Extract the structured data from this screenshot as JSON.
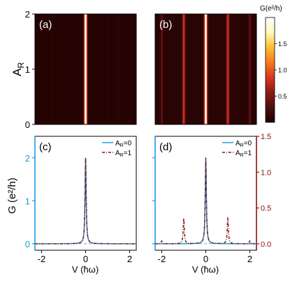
{
  "figure": {
    "colorbar": {
      "title": "G(e²/h)",
      "ticks": [
        "1.5",
        "1.0",
        "0.5"
      ],
      "tick_values": [
        1.5,
        1.0,
        0.5
      ],
      "range": [
        0,
        2.0
      ],
      "colors": [
        "#1b0000",
        "#4a0f0f",
        "#8c1a1a",
        "#d9361e",
        "#f47b1e",
        "#fbbf2c",
        "#fff8c0",
        "#ffffff"
      ]
    },
    "colors": {
      "left_axis": "#1a9fe0",
      "right_axis": "#8a1010",
      "curve_ar0": "#1a9fe0",
      "curve_ar1": "#8a1010"
    }
  },
  "chart_data": [
    {
      "panel": "(a)",
      "type": "heatmap",
      "ylabel_main": "A",
      "ylabel_sub": "R",
      "xlim": [
        -2.3,
        2.3
      ],
      "ylim": [
        0,
        2
      ],
      "ytick_labels": [
        "0",
        "1",
        "2"
      ],
      "ytick_values": [
        0,
        1,
        2
      ],
      "peaks_x": [
        0
      ],
      "peak_intensity": [
        1.9
      ],
      "background_intensity": 0.06
    },
    {
      "panel": "(b)",
      "type": "heatmap",
      "xlim": [
        -2.3,
        2.3
      ],
      "ylim": [
        0,
        2
      ],
      "peaks_x": [
        0,
        -1,
        1,
        -2,
        2
      ],
      "peak_intensity": [
        1.9,
        0.8,
        0.8,
        0.35,
        0.35
      ],
      "background_intensity": 0.08
    },
    {
      "panel": "(c)",
      "type": "line",
      "ylabel": "G (e²/h)",
      "xlim": [
        -2.3,
        2.3
      ],
      "ylim": [
        -0.15,
        2.5
      ],
      "ytick_labels": [
        "0",
        "1",
        "2"
      ],
      "ytick_values": [
        0,
        1,
        2
      ],
      "xtick_labels": [
        "-2",
        "0",
        "2"
      ],
      "xtick_values": [
        -2,
        0,
        2
      ],
      "xlabel": "V (ħω)",
      "series": [
        {
          "name_main": "A",
          "name_sub": "R",
          "name_suffix": "=0",
          "style": "solid",
          "peaks_x": [
            0
          ],
          "peaks_y": [
            2.0
          ],
          "width": 0.03
        },
        {
          "name_main": "A",
          "name_sub": "R",
          "name_suffix": "=1",
          "style": "dash",
          "peaks_x": [
            0
          ],
          "peaks_y": [
            2.0
          ],
          "width": 0.03
        }
      ]
    },
    {
      "panel": "(d)",
      "type": "line",
      "xlim": [
        -2.3,
        2.3
      ],
      "ylim": [
        -0.15,
        2.5
      ],
      "ylim_right": [
        -0.09,
        1.5
      ],
      "xtick_labels": [
        "-2",
        "0",
        "2"
      ],
      "xtick_values": [
        -2,
        0,
        2
      ],
      "ytick_right_labels": [
        "0.0",
        "0.5",
        "1.0",
        "1.5"
      ],
      "ytick_right_values": [
        0,
        0.5,
        1.0,
        1.5
      ],
      "xlabel": "V (ħω)",
      "series": [
        {
          "name_main": "A",
          "name_sub": "R",
          "name_suffix": "=0",
          "style": "solid",
          "axis": "left",
          "peaks_x": [
            0
          ],
          "peaks_y": [
            2.0
          ],
          "width": 0.03
        },
        {
          "name_main": "A",
          "name_sub": "R",
          "name_suffix": "=1",
          "style": "dash",
          "axis": "right",
          "peaks_x": [
            0,
            -1,
            1,
            -2,
            2
          ],
          "peaks_y": [
            1.2,
            0.36,
            0.36,
            0.04,
            0.04
          ],
          "width": 0.03
        }
      ]
    }
  ]
}
